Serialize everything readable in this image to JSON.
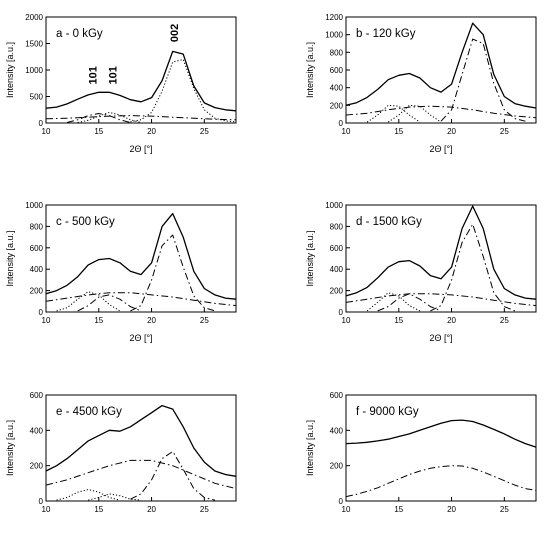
{
  "chart_data": [
    {
      "type": "line",
      "panel_label": "a - 0 kGy",
      "xlabel": "2Θ [°]",
      "ylabel": "Intensity [a.u.]",
      "xlim": [
        10,
        28
      ],
      "ylim": [
        0,
        2000
      ],
      "xticks": [
        "10",
        "15",
        "20",
        "25"
      ],
      "yticks": [
        "0",
        "500",
        "1000",
        "1500",
        "2000"
      ],
      "annotations": [
        {
          "text": "101",
          "x": 14.8,
          "y": 900,
          "rotate": -90
        },
        {
          "text": "101",
          "x": 16.7,
          "y": 900,
          "rotate": -90
        },
        {
          "text": "002",
          "x": 22.5,
          "y": 1700,
          "rotate": -90
        }
      ],
      "series": [
        {
          "style": "solid",
          "x": [
            10,
            11,
            12,
            13,
            14,
            15,
            16,
            17,
            18,
            19,
            20,
            21,
            22,
            23,
            24,
            25,
            26,
            27,
            28
          ],
          "y": [
            280,
            300,
            360,
            450,
            530,
            580,
            580,
            520,
            440,
            400,
            480,
            800,
            1350,
            1300,
            700,
            380,
            290,
            250,
            230
          ]
        },
        {
          "style": "dotted",
          "x": [
            18,
            19,
            20,
            21,
            22,
            23,
            24,
            25,
            26,
            27,
            28
          ],
          "y": [
            20,
            60,
            200,
            600,
            1150,
            1200,
            650,
            250,
            90,
            40,
            20
          ]
        },
        {
          "style": "dashdot",
          "x": [
            10,
            12,
            14,
            16,
            18,
            20,
            22,
            24,
            26,
            28
          ],
          "y": [
            80,
            90,
            110,
            130,
            140,
            130,
            110,
            90,
            70,
            60
          ]
        },
        {
          "style": "dashdot",
          "x": [
            12,
            13,
            14,
            15,
            16,
            17,
            18
          ],
          "y": [
            10,
            60,
            140,
            180,
            140,
            60,
            10
          ]
        },
        {
          "style": "dotted",
          "x": [
            13,
            14,
            15,
            16,
            17,
            18,
            19
          ],
          "y": [
            10,
            50,
            130,
            200,
            150,
            60,
            10
          ]
        }
      ]
    },
    {
      "type": "line",
      "panel_label": "b - 120 kGy",
      "xlabel": "2Θ [°]",
      "ylabel": "Intensity [a.u.]",
      "xlim": [
        10,
        28
      ],
      "ylim": [
        0,
        1200
      ],
      "xticks": [
        "10",
        "15",
        "20",
        "25"
      ],
      "yticks": [
        "0",
        "200",
        "400",
        "600",
        "800",
        "1000",
        "1200"
      ],
      "annotations": [],
      "series": [
        {
          "style": "solid",
          "x": [
            10,
            11,
            12,
            13,
            14,
            15,
            16,
            17,
            18,
            19,
            20,
            21,
            22,
            23,
            24,
            25,
            26,
            27,
            28
          ],
          "y": [
            200,
            230,
            290,
            380,
            490,
            540,
            560,
            510,
            400,
            350,
            440,
            800,
            1130,
            1000,
            550,
            300,
            220,
            190,
            170
          ]
        },
        {
          "style": "dashdot",
          "x": [
            19,
            20,
            21,
            22,
            23,
            24,
            25,
            26,
            27
          ],
          "y": [
            20,
            150,
            550,
            950,
            900,
            450,
            150,
            50,
            20
          ]
        },
        {
          "style": "dashdot",
          "x": [
            10,
            12,
            14,
            16,
            18,
            20,
            22,
            24,
            26,
            28
          ],
          "y": [
            90,
            110,
            150,
            180,
            190,
            180,
            150,
            110,
            80,
            60
          ]
        },
        {
          "style": "dotted",
          "x": [
            12,
            13,
            14,
            15,
            16,
            17
          ],
          "y": [
            10,
            90,
            200,
            190,
            90,
            10
          ]
        },
        {
          "style": "dotted",
          "x": [
            14,
            15,
            16,
            17,
            18,
            19
          ],
          "y": [
            10,
            90,
            200,
            190,
            90,
            10
          ]
        }
      ]
    },
    {
      "type": "line",
      "panel_label": "c - 500 kGy",
      "xlabel": "2Θ [°]",
      "ylabel": "Intensity [a.u.]",
      "xlim": [
        10,
        28
      ],
      "ylim": [
        0,
        1000
      ],
      "xticks": [
        "10",
        "15",
        "20",
        "25"
      ],
      "yticks": [
        "0",
        "200",
        "400",
        "600",
        "800",
        "1000"
      ],
      "annotations": [],
      "series": [
        {
          "style": "solid",
          "x": [
            10,
            11,
            12,
            13,
            14,
            15,
            16,
            17,
            18,
            19,
            20,
            21,
            22,
            23,
            24,
            25,
            26,
            27,
            28
          ],
          "y": [
            170,
            200,
            250,
            330,
            440,
            490,
            500,
            460,
            380,
            350,
            460,
            800,
            920,
            700,
            380,
            220,
            160,
            130,
            120
          ]
        },
        {
          "style": "dashdot",
          "x": [
            18,
            19,
            20,
            21,
            22,
            23,
            24,
            25,
            26
          ],
          "y": [
            10,
            60,
            300,
            620,
            720,
            420,
            150,
            40,
            10
          ]
        },
        {
          "style": "dashdot",
          "x": [
            10,
            12,
            14,
            16,
            18,
            20,
            22,
            24,
            26,
            28
          ],
          "y": [
            100,
            130,
            160,
            180,
            180,
            160,
            140,
            110,
            80,
            60
          ]
        },
        {
          "style": "dotted",
          "x": [
            11,
            12,
            13,
            14,
            15,
            16,
            17
          ],
          "y": [
            10,
            40,
            120,
            190,
            160,
            70,
            10
          ]
        },
        {
          "style": "dashdot",
          "x": [
            13,
            14,
            15,
            16,
            17,
            18,
            19
          ],
          "y": [
            10,
            60,
            140,
            160,
            120,
            50,
            10
          ]
        }
      ]
    },
    {
      "type": "line",
      "panel_label": "d - 1500 kGy",
      "xlabel": "2Θ [°]",
      "ylabel": "Intensity [a.u.]",
      "xlim": [
        10,
        28
      ],
      "ylim": [
        0,
        1000
      ],
      "xticks": [
        "10",
        "15",
        "20",
        "25"
      ],
      "yticks": [
        "0",
        "200",
        "400",
        "600",
        "800",
        "1000"
      ],
      "annotations": [],
      "series": [
        {
          "style": "solid",
          "x": [
            10,
            11,
            12,
            13,
            14,
            15,
            16,
            17,
            18,
            19,
            20,
            21,
            22,
            23,
            24,
            25,
            26,
            27,
            28
          ],
          "y": [
            150,
            180,
            230,
            320,
            420,
            470,
            480,
            430,
            340,
            310,
            420,
            780,
            990,
            780,
            400,
            220,
            160,
            130,
            120
          ]
        },
        {
          "style": "dashdot",
          "x": [
            18,
            19,
            20,
            21,
            22,
            23,
            24,
            25,
            26
          ],
          "y": [
            10,
            60,
            300,
            650,
            820,
            520,
            180,
            50,
            10
          ]
        },
        {
          "style": "dashdot",
          "x": [
            10,
            12,
            14,
            16,
            18,
            20,
            22,
            24,
            26,
            28
          ],
          "y": [
            90,
            120,
            150,
            170,
            170,
            160,
            140,
            110,
            80,
            60
          ]
        },
        {
          "style": "dotted",
          "x": [
            12,
            13,
            14,
            15,
            16,
            17
          ],
          "y": [
            10,
            90,
            180,
            150,
            60,
            10
          ]
        },
        {
          "style": "dashdot",
          "x": [
            13,
            14,
            15,
            16,
            17,
            18,
            19
          ],
          "y": [
            10,
            50,
            130,
            170,
            120,
            50,
            10
          ]
        }
      ]
    },
    {
      "type": "line",
      "panel_label": "e - 4500 kGy",
      "xlabel": "",
      "ylabel": "Intensity [a.u.]",
      "xlim": [
        10,
        28
      ],
      "ylim": [
        0,
        600
      ],
      "xticks": [
        "10",
        "15",
        "20",
        "25"
      ],
      "yticks": [
        "0",
        "200",
        "400",
        "600"
      ],
      "annotations": [],
      "series": [
        {
          "style": "solid",
          "x": [
            10,
            11,
            12,
            13,
            14,
            15,
            16,
            17,
            18,
            19,
            20,
            21,
            22,
            23,
            24,
            25,
            26,
            27,
            28
          ],
          "y": [
            170,
            200,
            240,
            290,
            340,
            370,
            400,
            395,
            420,
            460,
            500,
            540,
            520,
            420,
            300,
            220,
            170,
            150,
            140
          ]
        },
        {
          "style": "dashdot",
          "x": [
            10,
            12,
            14,
            16,
            18,
            20,
            22,
            24,
            26,
            28
          ],
          "y": [
            90,
            120,
            160,
            200,
            230,
            230,
            200,
            150,
            100,
            70
          ]
        },
        {
          "style": "dashdot",
          "x": [
            18,
            19,
            20,
            21,
            22,
            23,
            24,
            25,
            26
          ],
          "y": [
            10,
            40,
            120,
            240,
            280,
            180,
            70,
            20,
            5
          ]
        },
        {
          "style": "dotted",
          "x": [
            11,
            12,
            13,
            14,
            15,
            16,
            17
          ],
          "y": [
            5,
            20,
            50,
            65,
            50,
            20,
            5
          ]
        },
        {
          "style": "dotted",
          "x": [
            14,
            15,
            16,
            17,
            18,
            19
          ],
          "y": [
            5,
            20,
            40,
            30,
            10,
            5
          ]
        }
      ]
    },
    {
      "type": "line",
      "panel_label": "f - 9000 kGy",
      "xlabel": "",
      "ylabel": "Intensity [a.u.]",
      "xlim": [
        10,
        28
      ],
      "ylim": [
        0,
        600
      ],
      "xticks": [
        "10",
        "15",
        "20",
        "25"
      ],
      "yticks": [
        "0",
        "200",
        "400",
        "600"
      ],
      "annotations": [],
      "series": [
        {
          "style": "solid",
          "x": [
            10,
            11,
            12,
            13,
            14,
            15,
            16,
            17,
            18,
            19,
            20,
            21,
            22,
            23,
            24,
            25,
            26,
            27,
            28
          ],
          "y": [
            325,
            328,
            332,
            340,
            350,
            365,
            380,
            400,
            420,
            440,
            455,
            458,
            450,
            430,
            405,
            380,
            350,
            325,
            305
          ]
        },
        {
          "style": "dashdot",
          "x": [
            10,
            11,
            12,
            13,
            14,
            15,
            16,
            17,
            18,
            19,
            20,
            21,
            22,
            23,
            24,
            25,
            26,
            27,
            28
          ],
          "y": [
            25,
            38,
            55,
            75,
            100,
            125,
            150,
            170,
            185,
            195,
            200,
            198,
            185,
            165,
            140,
            115,
            90,
            70,
            60
          ]
        }
      ]
    }
  ]
}
